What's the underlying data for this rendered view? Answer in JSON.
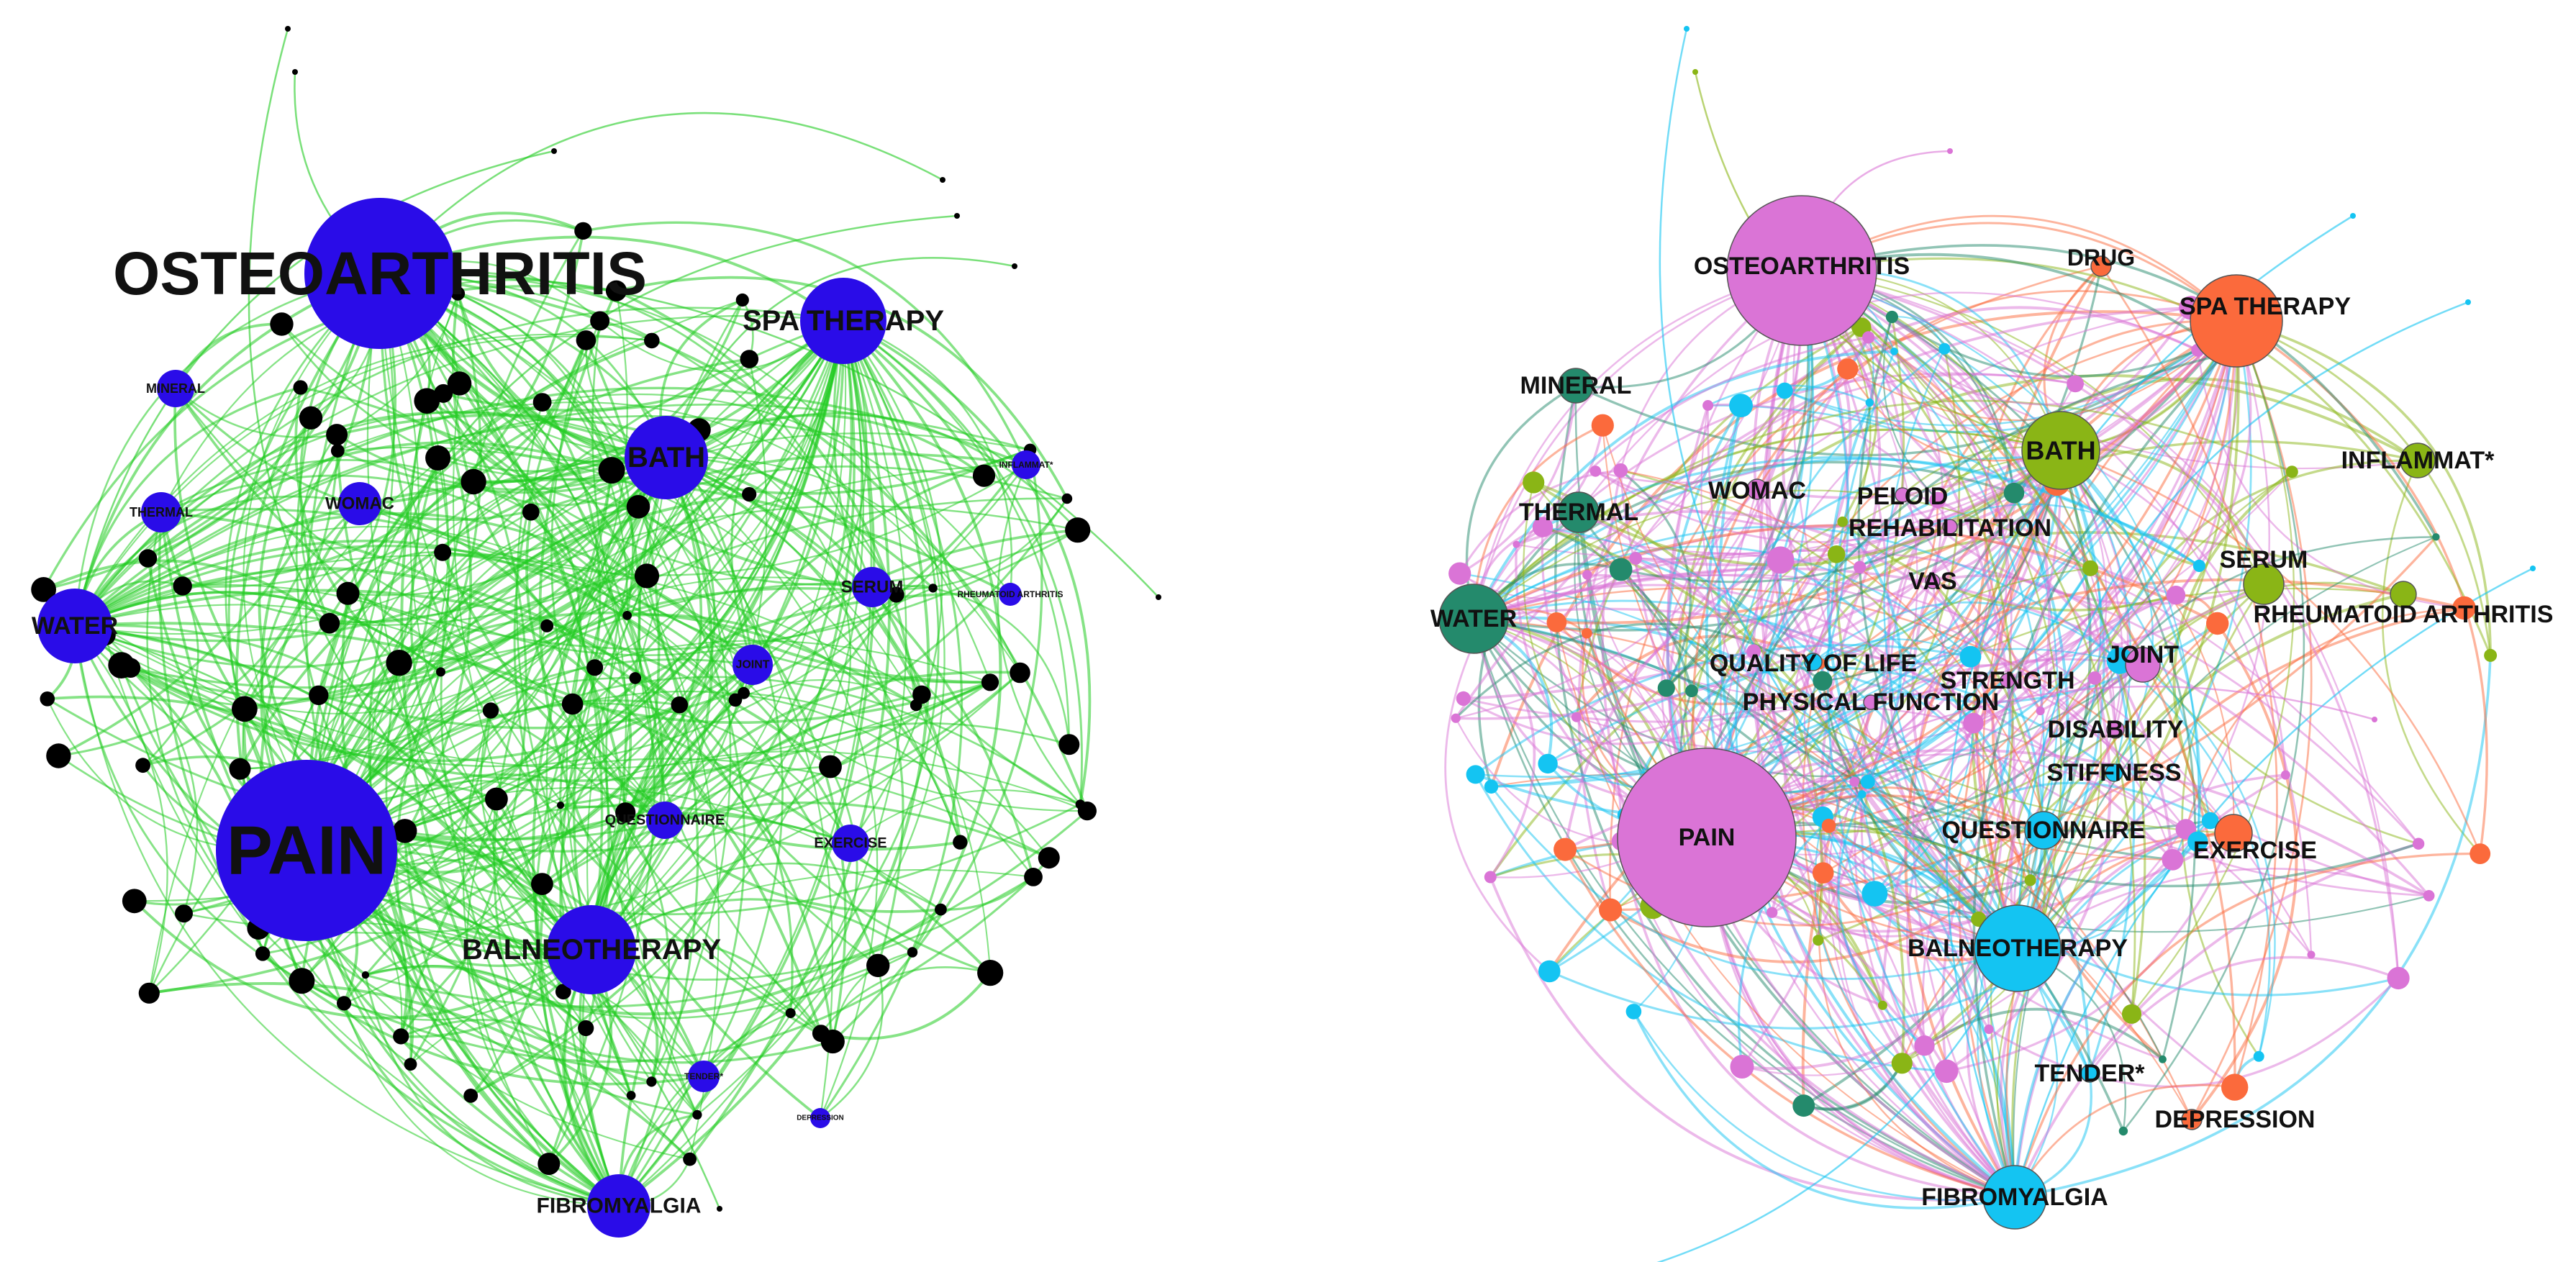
{
  "colors": {
    "left_edge": "#22cc22",
    "left_node": "#2a0ce8",
    "left_minor_node": "#000000",
    "cluster_pink": "#da74d6",
    "cluster_orange": "#fb6a3c",
    "cluster_olive": "#8ab516",
    "cluster_teal": "#248a6c",
    "cluster_cyan": "#14c4f2"
  },
  "left_network": {
    "keywords": [
      {
        "label": "OSTEOARTHRITIS",
        "weight": 10
      },
      {
        "label": "SPA THERAPY",
        "weight": 5
      },
      {
        "label": "MINERAL",
        "weight": 2
      },
      {
        "label": "BATH",
        "weight": 5
      },
      {
        "label": "INFLAMMAT*",
        "weight": 2
      },
      {
        "label": "THERMAL",
        "weight": 2
      },
      {
        "label": "WOMAC",
        "weight": 2
      },
      {
        "label": "SERUM",
        "weight": 2
      },
      {
        "label": "RHEUMATOID ARTHRITIS",
        "weight": 1
      },
      {
        "label": "WATER",
        "weight": 4
      },
      {
        "label": "JOINT",
        "weight": 2
      },
      {
        "label": "QUESTIONNAIRE",
        "weight": 2
      },
      {
        "label": "EXERCISE",
        "weight": 2
      },
      {
        "label": "PAIN",
        "weight": 12
      },
      {
        "label": "BALNEOTHERAPY",
        "weight": 6
      },
      {
        "label": "TENDER*",
        "weight": 2
      },
      {
        "label": "DEPRESSION",
        "weight": 1
      },
      {
        "label": "FIBROMYALGIA",
        "weight": 4
      }
    ]
  },
  "right_network": {
    "keywords": [
      {
        "label": "OSTEOARTHRITIS",
        "cluster": "pink",
        "weight": 10
      },
      {
        "label": "DRUG",
        "cluster": "orange",
        "weight": 1
      },
      {
        "label": "SPA THERAPY",
        "cluster": "orange",
        "weight": 5
      },
      {
        "label": "MINERAL",
        "cluster": "teal",
        "weight": 2
      },
      {
        "label": "BATH",
        "cluster": "olive",
        "weight": 5
      },
      {
        "label": "INFLAMMAT*",
        "cluster": "olive",
        "weight": 2
      },
      {
        "label": "THERMAL",
        "cluster": "teal",
        "weight": 2
      },
      {
        "label": "WOMAC",
        "cluster": "pink",
        "weight": 2
      },
      {
        "label": "PELOID",
        "cluster": "pink",
        "weight": 1
      },
      {
        "label": "REHABILITATION",
        "cluster": "pink",
        "weight": 1
      },
      {
        "label": "SERUM",
        "cluster": "olive",
        "weight": 2
      },
      {
        "label": "VAS",
        "cluster": "pink",
        "weight": 1
      },
      {
        "label": "RHEUMATOID ARTHRITIS",
        "cluster": "olive",
        "weight": 1
      },
      {
        "label": "WATER",
        "cluster": "teal",
        "weight": 4
      },
      {
        "label": "QUALITY OF LIFE",
        "cluster": "cyan",
        "weight": 1
      },
      {
        "label": "STRENGTH",
        "cluster": "pink",
        "weight": 1
      },
      {
        "label": "JOINT",
        "cluster": "pink",
        "weight": 2
      },
      {
        "label": "PHYSICAL FUNCTION",
        "cluster": "pink",
        "weight": 1
      },
      {
        "label": "DISABILITY",
        "cluster": "pink",
        "weight": 1
      },
      {
        "label": "STIFFNESS",
        "cluster": "cyan",
        "weight": 1
      },
      {
        "label": "PAIN",
        "cluster": "pink",
        "weight": 12
      },
      {
        "label": "QUESTIONNAIRE",
        "cluster": "cyan",
        "weight": 2
      },
      {
        "label": "EXERCISE",
        "cluster": "orange",
        "weight": 2
      },
      {
        "label": "BALNEOTHERAPY",
        "cluster": "cyan",
        "weight": 6
      },
      {
        "label": "TENDER*",
        "cluster": "cyan",
        "weight": 1
      },
      {
        "label": "DEPRESSION",
        "cluster": "orange",
        "weight": 1
      },
      {
        "label": "FIBROMYALGIA",
        "cluster": "cyan",
        "weight": 4
      }
    ]
  }
}
